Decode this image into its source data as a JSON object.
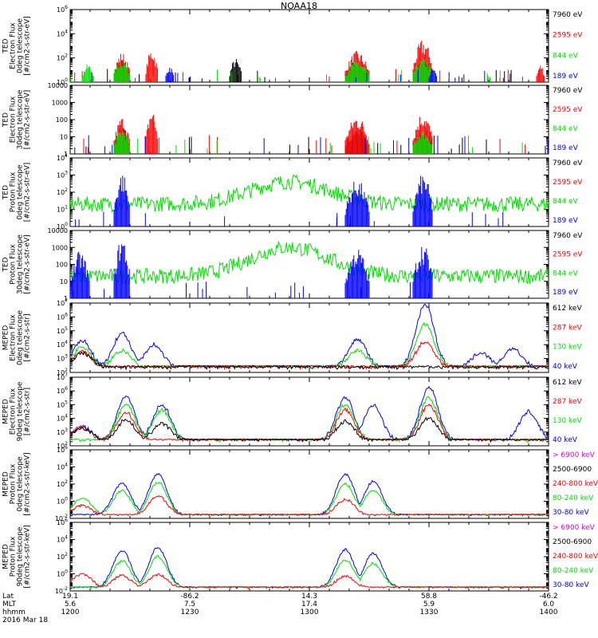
{
  "title": "NOAA18",
  "colors": {
    "black": "#000000",
    "red": "#ff0000",
    "green": "#00e000",
    "blue": "#0000ff",
    "magenta": "#e000e0"
  },
  "chart_data": [
    {
      "type": "line",
      "ylabel": [
        "TED",
        "Electron Flux",
        "0deg telescope",
        "[#/cm2-s-str-eV]"
      ],
      "yscale": "log",
      "ylim": [
        1,
        1000000
      ],
      "ytick_labels": [
        "10^0",
        "10^2",
        "10^4",
        "10^6"
      ],
      "legend": [
        {
          "label": "7960 eV",
          "color": "#000000"
        },
        {
          "label": "2595 eV",
          "color": "#ff0000"
        },
        {
          "label": "844 eV",
          "color": "#00e000"
        },
        {
          "label": "189 eV",
          "color": "#0000ff"
        }
      ],
      "series_activity": [
        {
          "name": "7960 eV",
          "color": "#000000",
          "bursts": [
            [
              1211,
              1215,
              2.0
            ],
            [
              1240,
              1243,
              2.0
            ],
            [
              1309,
              1315,
              1.8
            ],
            [
              1326,
              1331,
              2.0
            ]
          ]
        },
        {
          "name": "2595 eV",
          "color": "#ff0000",
          "bursts": [
            [
              1211,
              1215,
              2.5
            ],
            [
              1219,
              1222,
              2.8
            ],
            [
              1309,
              1315,
              2.6
            ],
            [
              1326,
              1331,
              3.6
            ],
            [
              1357,
              1359,
              1.5
            ]
          ]
        },
        {
          "name": "844 eV",
          "color": "#00e000",
          "bursts": [
            [
              1203,
              1206,
              1.5
            ],
            [
              1211,
              1215,
              2.0
            ],
            [
              1309,
              1315,
              1.8
            ],
            [
              1326,
              1331,
              2.0
            ]
          ]
        },
        {
          "name": "189 eV",
          "color": "#0000ff",
          "bursts": [
            [
              1224,
              1226,
              1.4
            ],
            [
              1330,
              1332,
              1.2
            ]
          ]
        }
      ]
    },
    {
      "type": "line",
      "ylabel": [
        "TED",
        "Electron Flux",
        "30deg telescope",
        "[#/cm2-s-str-eV]"
      ],
      "yscale": "log",
      "ylim": [
        1,
        10000
      ],
      "ytick_labels": [
        "1",
        "10",
        "100",
        "1000",
        "10000"
      ],
      "legend": [
        {
          "label": "7960 eV",
          "color": "#000000"
        },
        {
          "label": "2595 eV",
          "color": "#ff0000"
        },
        {
          "label": "844 eV",
          "color": "#00e000"
        },
        {
          "label": "189 eV",
          "color": "#0000ff"
        }
      ],
      "series_activity": [
        {
          "name": "7960 eV",
          "color": "#000000",
          "bursts": [
            [
              1211,
              1215,
              1.6
            ],
            [
              1309,
              1315,
              1.5
            ],
            [
              1326,
              1331,
              1.6
            ]
          ]
        },
        {
          "name": "2595 eV",
          "color": "#ff0000",
          "bursts": [
            [
              1211,
              1215,
              2.2
            ],
            [
              1219,
              1222,
              2.7
            ],
            [
              1309,
              1315,
              2.3
            ],
            [
              1326,
              1331,
              2.5
            ]
          ]
        },
        {
          "name": "844 eV",
          "color": "#00e000",
          "bursts": [
            [
              1211,
              1215,
              1.5
            ],
            [
              1326,
              1331,
              1.4
            ]
          ]
        },
        {
          "name": "189 eV",
          "color": "#0000ff",
          "bursts": []
        }
      ]
    },
    {
      "type": "line",
      "ylabel": [
        "TED",
        "Proton Flux",
        "0deg telescope",
        "[#/cm2-s-str-eV]"
      ],
      "yscale": "log",
      "ylim": [
        1,
        10000
      ],
      "ytick_labels": [
        "10^0",
        "10^1",
        "10^2",
        "10^3",
        "10^4"
      ],
      "legend": [
        {
          "label": "7960 eV",
          "color": "#000000"
        },
        {
          "label": "2595 eV",
          "color": "#ff0000"
        },
        {
          "label": "844 eV",
          "color": "#00e000"
        },
        {
          "label": "189 eV",
          "color": "#0000ff"
        }
      ],
      "series_activity": [
        {
          "name": "844 eV",
          "color": "#00e000",
          "baseline": 1.3,
          "peak_at": 1255,
          "peak": 2.6
        },
        {
          "name": "189 eV",
          "color": "#0000ff",
          "bursts": [
            [
              1211,
              1215,
              3.2
            ],
            [
              1309,
              1315,
              2.8
            ],
            [
              1326,
              1331,
              3.1
            ]
          ]
        }
      ]
    },
    {
      "type": "line",
      "ylabel": [
        "TED",
        "Proton Flux",
        "30deg telescope",
        "[#/cm2-s-str-eV]"
      ],
      "yscale": "log",
      "ylim": [
        1,
        10000
      ],
      "ytick_labels": [
        "1",
        "10",
        "100",
        "1000",
        "10000"
      ],
      "legend": [
        {
          "label": "7960 eV",
          "color": "#000000"
        },
        {
          "label": "2595 eV",
          "color": "#ff0000"
        },
        {
          "label": "844 eV",
          "color": "#00e000"
        },
        {
          "label": "189 eV",
          "color": "#0000ff"
        }
      ],
      "series_activity": [
        {
          "name": "844 eV",
          "color": "#00e000",
          "baseline": 1.3,
          "peak_at": 1255,
          "peak": 3.0
        },
        {
          "name": "189 eV",
          "color": "#0000ff",
          "bursts": [
            [
              1200,
              1205,
              2.8
            ],
            [
              1211,
              1215,
              3.7
            ],
            [
              1309,
              1315,
              3.0
            ],
            [
              1326,
              1331,
              3.3
            ]
          ]
        }
      ]
    },
    {
      "type": "line",
      "ylabel": [
        "MEPED",
        "Electron Flux",
        "0deg telescope",
        "[#/cm2-s-str]"
      ],
      "yscale": "log",
      "ylim": [
        100,
        10000000
      ],
      "ytick_labels": [
        "10^2",
        "10^3",
        "10^4",
        "10^5",
        "10^6",
        "10^7"
      ],
      "legend": [
        {
          "label": "612 keV",
          "color": "#000000"
        },
        {
          "label": "287 keV",
          "color": "#ff0000"
        },
        {
          "label": "130 keV",
          "color": "#00e000"
        },
        {
          "label": "40 keV",
          "color": "#0000ff"
        }
      ],
      "series_activity": [
        {
          "name": "40 keV",
          "color": "#0000ff",
          "peaks": [
            [
              1203,
              4.3
            ],
            [
              1213,
              4.8
            ],
            [
              1221,
              4.0
            ],
            [
              1312,
              4.4
            ],
            [
              1329,
              6.9
            ],
            [
              1343,
              3.4
            ],
            [
              1351,
              3.7
            ]
          ]
        },
        {
          "name": "130 keV",
          "color": "#00e000",
          "peaks": [
            [
              1203,
              3.8
            ],
            [
              1213,
              3.6
            ],
            [
              1312,
              3.6
            ],
            [
              1329,
              5.5
            ]
          ]
        },
        {
          "name": "287 keV",
          "color": "#ff0000",
          "peaks": [
            [
              1203,
              3.5
            ],
            [
              1329,
              4.2
            ]
          ]
        },
        {
          "name": "612 keV",
          "color": "#000000",
          "peaks": [
            [
              1203,
              3.4
            ]
          ]
        }
      ]
    },
    {
      "type": "line",
      "ylabel": [
        "MEPED",
        "Electron Flux",
        "90deg telescope",
        "[#/cm2-s-str]"
      ],
      "yscale": "log",
      "ylim": [
        100,
        10000000
      ],
      "ytick_labels": [
        "10^2",
        "10^3",
        "10^4",
        "10^5",
        "10^6",
        "10^7"
      ],
      "legend": [
        {
          "label": "612 keV",
          "color": "#000000"
        },
        {
          "label": "287 keV",
          "color": "#ff0000"
        },
        {
          "label": "130 keV",
          "color": "#00e000"
        },
        {
          "label": "40 keV",
          "color": "#0000ff"
        }
      ],
      "series_activity": [
        {
          "name": "40 keV",
          "color": "#0000ff",
          "peaks": [
            [
              1203,
              3.4
            ],
            [
              1214,
              5.6
            ],
            [
              1223,
              5.0
            ],
            [
              1309,
              5.5
            ],
            [
              1316,
              5.0
            ],
            [
              1330,
              6.3
            ],
            [
              1355,
              4.5
            ]
          ]
        },
        {
          "name": "130 keV",
          "color": "#00e000",
          "peaks": [
            [
              1214,
              5.0
            ],
            [
              1223,
              4.6
            ],
            [
              1309,
              5.0
            ],
            [
              1330,
              5.5
            ]
          ]
        },
        {
          "name": "287 keV",
          "color": "#ff0000",
          "peaks": [
            [
              1203,
              3.4
            ],
            [
              1214,
              4.4
            ],
            [
              1309,
              4.6
            ],
            [
              1330,
              5.0
            ]
          ]
        },
        {
          "name": "612 keV",
          "color": "#000000",
          "peaks": [
            [
              1203,
              3.3
            ],
            [
              1214,
              3.9
            ],
            [
              1223,
              3.6
            ],
            [
              1309,
              3.8
            ],
            [
              1330,
              4.0
            ]
          ]
        }
      ]
    },
    {
      "type": "line",
      "ylabel": [
        "MEPED",
        "Proton Flux",
        "0deg telescope",
        "[#/cm2-s-str-keV]"
      ],
      "yscale": "log",
      "ylim": [
        0.01,
        1000000
      ],
      "ytick_labels": [
        "10^-2",
        "10^0",
        "10^2",
        "10^4",
        "10^6"
      ],
      "legend": [
        {
          "label": "> 6900 keV",
          "color": "#e000e0"
        },
        {
          "label": "2500-6900",
          "color": "#000000"
        },
        {
          "label": "240-800 keV",
          "color": "#ff0000"
        },
        {
          "label": "80-240 keV",
          "color": "#00e000"
        },
        {
          "label": "30-80 keV",
          "color": "#0000ff"
        }
      ],
      "series_activity": [
        {
          "name": "30-80 keV",
          "color": "#0000ff",
          "peaks": [
            [
              1213,
              2.1
            ],
            [
              1222,
              3.2
            ],
            [
              1309,
              3.2
            ],
            [
              1316,
              2.3
            ]
          ]
        },
        {
          "name": "80-240 keV",
          "color": "#00e000",
          "peaks": [
            [
              1203,
              0.4
            ],
            [
              1213,
              1.2
            ],
            [
              1222,
              2.2
            ],
            [
              1309,
              2.0
            ],
            [
              1316,
              1.3
            ]
          ]
        },
        {
          "name": "240-800 keV",
          "color": "#ff0000",
          "peaks": [
            [
              1203,
              -0.5
            ],
            [
              1222,
              0.6
            ],
            [
              1309,
              0.2
            ]
          ]
        }
      ]
    },
    {
      "type": "line",
      "ylabel": [
        "MEPED",
        "Proton Flux",
        "90deg telescope",
        "[#/cm2-s-str-keV]"
      ],
      "yscale": "log",
      "ylim": [
        0.01,
        1000000
      ],
      "ytick_labels": [
        "10^-2",
        "10^0",
        "10^2",
        "10^4",
        "10^6"
      ],
      "legend": [
        {
          "label": "> 6900 keV",
          "color": "#e000e0"
        },
        {
          "label": "2500-6900",
          "color": "#000000"
        },
        {
          "label": "240-800 keV",
          "color": "#ff0000"
        },
        {
          "label": "80-240 keV",
          "color": "#00e000"
        },
        {
          "label": "30-80 keV",
          "color": "#0000ff"
        }
      ],
      "series_activity": [
        {
          "name": "30-80 keV",
          "color": "#0000ff",
          "peaks": [
            [
              1213,
              2.7
            ],
            [
              1222,
              3.1
            ],
            [
              1309,
              2.8
            ],
            [
              1316,
              2.4
            ]
          ]
        },
        {
          "name": "80-240 keV",
          "color": "#00e000",
          "peaks": [
            [
              1213,
              1.5
            ],
            [
              1222,
              2.0
            ],
            [
              1309,
              1.6
            ],
            [
              1316,
              1.2
            ]
          ]
        },
        {
          "name": "240-800 keV",
          "color": "#ff0000",
          "peaks": [
            [
              1203,
              0.0
            ],
            [
              1213,
              -0.2
            ],
            [
              1222,
              -0.1
            ],
            [
              1309,
              -0.3
            ]
          ]
        }
      ]
    }
  ],
  "xaxis": {
    "row_labels": [
      "Lat",
      "MLT",
      "hhmm",
      "2016 Mar 18"
    ],
    "ticks": [
      {
        "lat": "19.1",
        "mlt": "5.6",
        "hhmm": "1200"
      },
      {
        "lat": "-86.2",
        "mlt": "7.5",
        "hhmm": "1230"
      },
      {
        "lat": "14.3",
        "mlt": "17.4",
        "hhmm": "1300"
      },
      {
        "lat": "58.8",
        "mlt": "5.9",
        "hhmm": "1330"
      },
      {
        "lat": "-46.2",
        "mlt": "6.0",
        "hhmm": "1400"
      }
    ]
  }
}
